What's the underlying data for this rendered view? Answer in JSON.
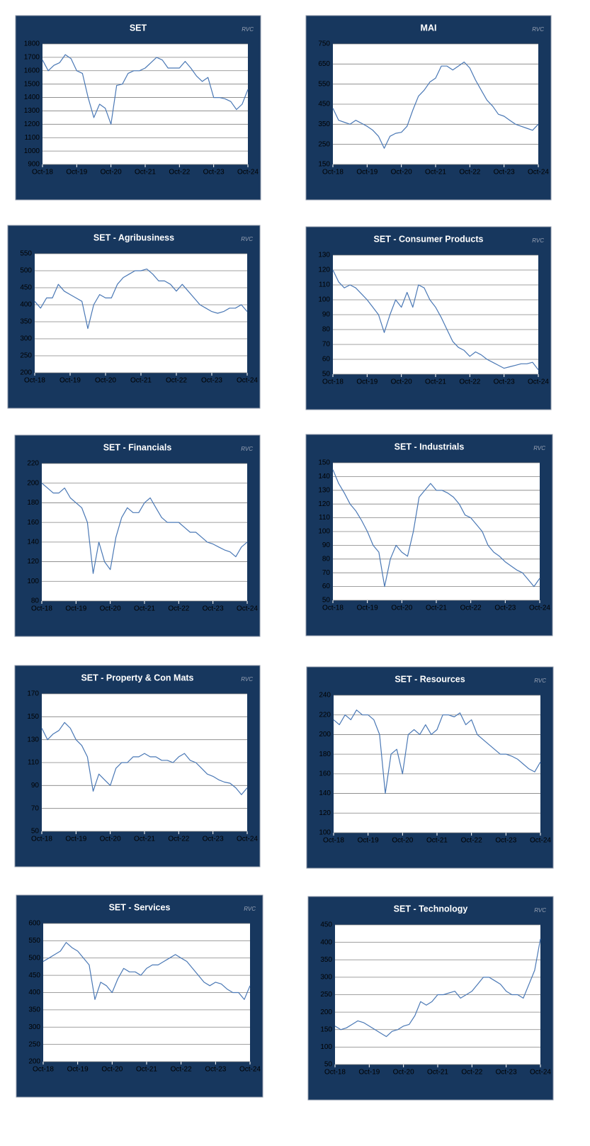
{
  "chart_data": [
    {
      "type": "line",
      "title": "SET",
      "watermark": "RVC",
      "color": "#4a78b5",
      "grid": true,
      "categories": [
        "Oct-18",
        null,
        null,
        null,
        null,
        null,
        "Oct-19",
        null,
        null,
        null,
        null,
        null,
        "Oct-20",
        null,
        null,
        null,
        null,
        null,
        "Oct-21",
        null,
        null,
        null,
        null,
        null,
        "Oct-22",
        null,
        null,
        null,
        null,
        null,
        "Oct-23",
        null,
        null,
        null,
        null,
        null,
        "Oct-24"
      ],
      "values": [
        1680,
        1600,
        1640,
        1660,
        1720,
        1690,
        1600,
        1580,
        1400,
        1250,
        1350,
        1320,
        1200,
        1490,
        1500,
        1580,
        1600,
        1600,
        1620,
        1660,
        1700,
        1680,
        1620,
        1620,
        1620,
        1670,
        1620,
        1560,
        1520,
        1550,
        1400,
        1400,
        1390,
        1370,
        1310,
        1350,
        1460
      ],
      "ylim": [
        900,
        1800
      ],
      "yticks": [
        900,
        1000,
        1100,
        1200,
        1300,
        1400,
        1500,
        1600,
        1700,
        1800
      ]
    },
    {
      "type": "line",
      "title": "MAI",
      "watermark": "RVC",
      "color": "#4a78b5",
      "grid": true,
      "categories": [
        "Oct-18",
        null,
        null,
        null,
        null,
        null,
        "Oct-19",
        null,
        null,
        null,
        null,
        null,
        "Oct-20",
        null,
        null,
        null,
        null,
        null,
        "Oct-21",
        null,
        null,
        null,
        null,
        null,
        "Oct-22",
        null,
        null,
        null,
        null,
        null,
        "Oct-23",
        null,
        null,
        null,
        null,
        null,
        "Oct-24"
      ],
      "values": [
        430,
        370,
        360,
        350,
        370,
        355,
        340,
        320,
        290,
        230,
        290,
        305,
        310,
        340,
        420,
        490,
        520,
        560,
        580,
        640,
        640,
        620,
        640,
        660,
        630,
        570,
        520,
        470,
        440,
        400,
        390,
        370,
        350,
        340,
        330,
        320,
        350
      ],
      "ylim": [
        150,
        750
      ],
      "yticks": [
        150,
        250,
        350,
        450,
        550,
        650,
        750
      ]
    },
    {
      "type": "line",
      "title": "SET - Agribusiness",
      "watermark": "RVC",
      "color": "#4a78b5",
      "grid": true,
      "categories": [
        "Oct-18",
        null,
        null,
        null,
        null,
        null,
        "Oct-19",
        null,
        null,
        null,
        null,
        null,
        "Oct-20",
        null,
        null,
        null,
        null,
        null,
        "Oct-21",
        null,
        null,
        null,
        null,
        null,
        "Oct-22",
        null,
        null,
        null,
        null,
        null,
        "Oct-23",
        null,
        null,
        null,
        null,
        null,
        "Oct-24"
      ],
      "values": [
        410,
        390,
        420,
        420,
        460,
        440,
        430,
        420,
        410,
        330,
        400,
        430,
        420,
        420,
        460,
        480,
        490,
        500,
        500,
        505,
        490,
        470,
        470,
        460,
        440,
        460,
        440,
        420,
        400,
        390,
        380,
        375,
        380,
        390,
        390,
        400,
        380
      ],
      "ylim": [
        200,
        550
      ],
      "yticks": [
        200,
        250,
        300,
        350,
        400,
        450,
        500,
        550
      ]
    },
    {
      "type": "line",
      "title": "SET - Consumer Products",
      "watermark": "RVC",
      "color": "#4a78b5",
      "grid": true,
      "categories": [
        "Oct-18",
        null,
        null,
        null,
        null,
        null,
        "Oct-19",
        null,
        null,
        null,
        null,
        null,
        "Oct-20",
        null,
        null,
        null,
        null,
        null,
        "Oct-21",
        null,
        null,
        null,
        null,
        null,
        "Oct-22",
        null,
        null,
        null,
        null,
        null,
        "Oct-23",
        null,
        null,
        null,
        null,
        null,
        "Oct-24"
      ],
      "values": [
        120,
        112,
        108,
        110,
        108,
        104,
        100,
        95,
        90,
        78,
        90,
        100,
        95,
        105,
        95,
        110,
        108,
        100,
        95,
        88,
        80,
        72,
        68,
        66,
        62,
        65,
        63,
        60,
        58,
        56,
        54,
        55,
        56,
        57,
        57,
        58,
        53
      ],
      "ylim": [
        50,
        130
      ],
      "yticks": [
        50,
        60,
        70,
        80,
        90,
        100,
        110,
        120,
        130
      ]
    },
    {
      "type": "line",
      "title": "SET - Financials",
      "watermark": "RVC",
      "color": "#4a78b5",
      "grid": true,
      "categories": [
        "Oct-18",
        null,
        null,
        null,
        null,
        null,
        "Oct-19",
        null,
        null,
        null,
        null,
        null,
        "Oct-20",
        null,
        null,
        null,
        null,
        null,
        "Oct-21",
        null,
        null,
        null,
        null,
        null,
        "Oct-22",
        null,
        null,
        null,
        null,
        null,
        "Oct-23",
        null,
        null,
        null,
        null,
        null,
        "Oct-24"
      ],
      "values": [
        200,
        195,
        190,
        190,
        195,
        185,
        180,
        175,
        160,
        108,
        140,
        120,
        112,
        145,
        165,
        175,
        170,
        170,
        180,
        185,
        175,
        165,
        160,
        160,
        160,
        155,
        150,
        150,
        145,
        140,
        138,
        135,
        132,
        130,
        125,
        135,
        140
      ],
      "ylim": [
        80,
        220
      ],
      "yticks": [
        80,
        100,
        120,
        140,
        160,
        180,
        200,
        220
      ]
    },
    {
      "type": "line",
      "title": "SET - Industrials",
      "watermark": "RVC",
      "color": "#4a78b5",
      "grid": true,
      "categories": [
        "Oct-18",
        null,
        null,
        null,
        null,
        null,
        "Oct-19",
        null,
        null,
        null,
        null,
        null,
        "Oct-20",
        null,
        null,
        null,
        null,
        null,
        "Oct-21",
        null,
        null,
        null,
        null,
        null,
        "Oct-22",
        null,
        null,
        null,
        null,
        null,
        "Oct-23",
        null,
        null,
        null,
        null,
        null,
        "Oct-24"
      ],
      "values": [
        145,
        135,
        128,
        120,
        115,
        108,
        100,
        90,
        85,
        60,
        80,
        90,
        85,
        82,
        100,
        125,
        130,
        135,
        130,
        130,
        128,
        125,
        120,
        112,
        110,
        105,
        100,
        90,
        85,
        82,
        78,
        75,
        72,
        70,
        65,
        60,
        66
      ],
      "ylim": [
        50,
        150
      ],
      "yticks": [
        50,
        60,
        70,
        80,
        90,
        100,
        110,
        120,
        130,
        140,
        150
      ]
    },
    {
      "type": "line",
      "title": "SET - Property & Con Mats",
      "watermark": "RVC",
      "color": "#4a78b5",
      "grid": true,
      "categories": [
        "Oct-18",
        null,
        null,
        null,
        null,
        null,
        "Oct-19",
        null,
        null,
        null,
        null,
        null,
        "Oct-20",
        null,
        null,
        null,
        null,
        null,
        "Oct-21",
        null,
        null,
        null,
        null,
        null,
        "Oct-22",
        null,
        null,
        null,
        null,
        null,
        "Oct-23",
        null,
        null,
        null,
        null,
        null,
        "Oct-24"
      ],
      "values": [
        140,
        130,
        135,
        138,
        145,
        140,
        130,
        125,
        115,
        85,
        100,
        95,
        90,
        105,
        110,
        110,
        115,
        115,
        118,
        115,
        115,
        112,
        112,
        110,
        115,
        118,
        112,
        110,
        105,
        100,
        98,
        95,
        93,
        92,
        88,
        82,
        88
      ],
      "ylim": [
        50,
        170
      ],
      "yticks": [
        50,
        70,
        90,
        110,
        130,
        150,
        170
      ]
    },
    {
      "type": "line",
      "title": "SET - Resources",
      "watermark": "RVC",
      "color": "#4a78b5",
      "grid": true,
      "categories": [
        "Oct-18",
        null,
        null,
        null,
        null,
        null,
        "Oct-19",
        null,
        null,
        null,
        null,
        null,
        "Oct-20",
        null,
        null,
        null,
        null,
        null,
        "Oct-21",
        null,
        null,
        null,
        null,
        null,
        "Oct-22",
        null,
        null,
        null,
        null,
        null,
        "Oct-23",
        null,
        null,
        null,
        null,
        null,
        "Oct-24"
      ],
      "values": [
        215,
        210,
        220,
        215,
        225,
        220,
        220,
        215,
        200,
        140,
        180,
        185,
        160,
        200,
        205,
        200,
        210,
        200,
        205,
        220,
        220,
        218,
        222,
        210,
        215,
        200,
        195,
        190,
        185,
        180,
        180,
        178,
        175,
        170,
        165,
        162,
        172
      ],
      "ylim": [
        100,
        240
      ],
      "yticks": [
        100,
        120,
        140,
        160,
        180,
        200,
        220,
        240
      ]
    },
    {
      "type": "line",
      "title": "SET - Services",
      "watermark": "RVC",
      "color": "#4a78b5",
      "grid": true,
      "categories": [
        "Oct-18",
        null,
        null,
        null,
        null,
        null,
        "Oct-19",
        null,
        null,
        null,
        null,
        null,
        "Oct-20",
        null,
        null,
        null,
        null,
        null,
        "Oct-21",
        null,
        null,
        null,
        null,
        null,
        "Oct-22",
        null,
        null,
        null,
        null,
        null,
        "Oct-23",
        null,
        null,
        null,
        null,
        null,
        "Oct-24"
      ],
      "values": [
        490,
        500,
        510,
        520,
        545,
        530,
        520,
        500,
        480,
        380,
        430,
        420,
        400,
        440,
        470,
        460,
        460,
        450,
        470,
        480,
        480,
        490,
        500,
        510,
        500,
        490,
        470,
        450,
        430,
        420,
        430,
        425,
        410,
        400,
        400,
        380,
        420
      ],
      "ylim": [
        200,
        600
      ],
      "yticks": [
        200,
        250,
        300,
        350,
        400,
        450,
        500,
        550,
        600
      ]
    },
    {
      "type": "line",
      "title": "SET - Technology",
      "watermark": "RVC",
      "color": "#4a78b5",
      "grid": true,
      "categories": [
        "Oct-18",
        null,
        null,
        null,
        null,
        null,
        "Oct-19",
        null,
        null,
        null,
        null,
        null,
        "Oct-20",
        null,
        null,
        null,
        null,
        null,
        "Oct-21",
        null,
        null,
        null,
        null,
        null,
        "Oct-22",
        null,
        null,
        null,
        null,
        null,
        "Oct-23",
        null,
        null,
        null,
        null,
        null,
        "Oct-24"
      ],
      "values": [
        160,
        150,
        155,
        165,
        175,
        170,
        160,
        150,
        140,
        130,
        145,
        150,
        160,
        165,
        190,
        230,
        220,
        230,
        250,
        250,
        255,
        260,
        240,
        250,
        260,
        280,
        300,
        300,
        290,
        280,
        260,
        250,
        250,
        240,
        280,
        320,
        410
      ],
      "ylim": [
        50,
        450
      ],
      "yticks": [
        50,
        100,
        150,
        200,
        250,
        300,
        350,
        400,
        450
      ]
    }
  ]
}
